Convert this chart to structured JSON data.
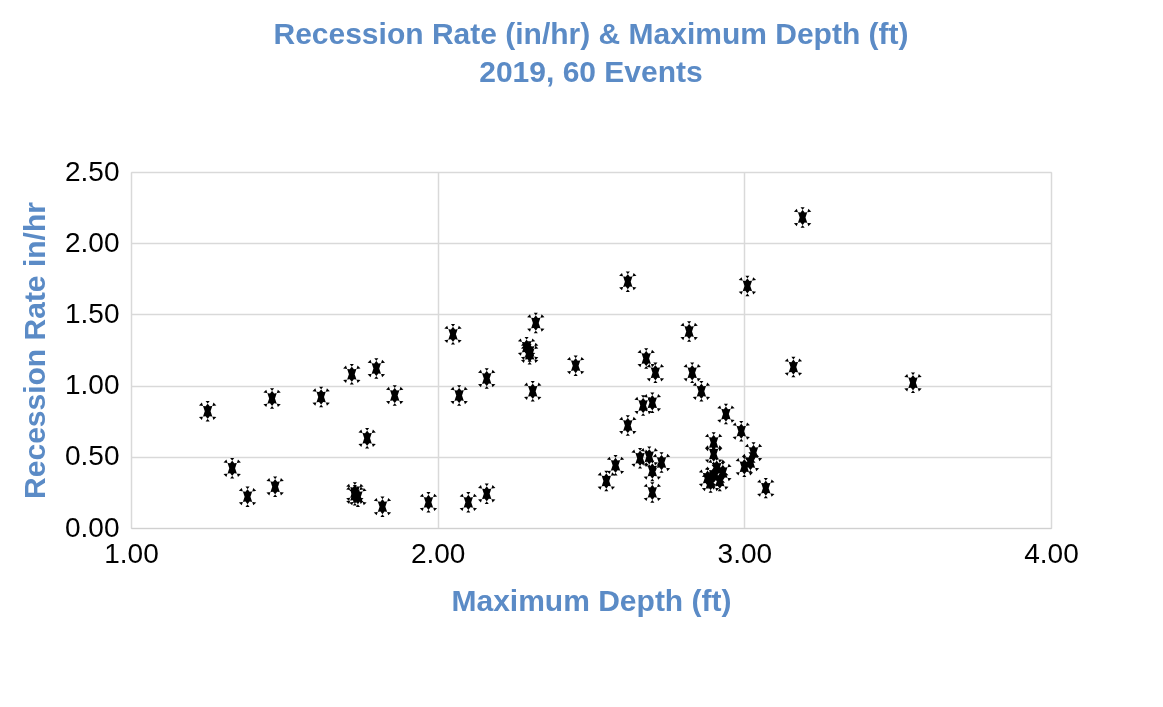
{
  "chart_data": {
    "type": "scatter",
    "title": "Recession Rate (in/hr) & Maximum Depth (ft)",
    "subtitle": "2019, 60 Events",
    "xlabel": "Maximum Depth (ft)",
    "ylabel": "Recession Rate in/hr",
    "series": [
      {
        "color": "#000000",
        "x": [
          1.25,
          1.33,
          1.38,
          1.47,
          1.46,
          1.62,
          1.72,
          1.8,
          1.86,
          1.77,
          1.73,
          1.74,
          1.82,
          1.97,
          2.1,
          2.16,
          2.05,
          2.07,
          2.16,
          2.32,
          2.29,
          2.3,
          2.31,
          2.62,
          3.01,
          3.19,
          2.45,
          2.82,
          3.16,
          2.68,
          2.71,
          2.83,
          2.86,
          2.7,
          2.67,
          2.62,
          2.94,
          2.99,
          2.9,
          2.9,
          3.03,
          3.02,
          2.58,
          2.55,
          2.66,
          2.73,
          2.7,
          2.7,
          2.9,
          2.92,
          2.89,
          2.93,
          3.07,
          3.55,
          2.91,
          2.88,
          3.0,
          2.69,
          2.3,
          1.73
        ],
        "values": [
          0.82,
          0.42,
          0.22,
          0.29,
          0.91,
          0.92,
          1.08,
          1.12,
          0.93,
          0.63,
          0.25,
          0.22,
          0.15,
          0.18,
          0.18,
          0.24,
          1.36,
          0.93,
          1.05,
          1.44,
          1.27,
          1.22,
          0.96,
          1.73,
          1.7,
          2.18,
          1.14,
          1.38,
          1.13,
          1.19,
          1.09,
          1.09,
          0.96,
          0.88,
          0.86,
          0.72,
          0.8,
          0.68,
          0.6,
          0.52,
          0.53,
          0.46,
          0.44,
          0.33,
          0.49,
          0.46,
          0.4,
          0.25,
          0.37,
          0.33,
          0.32,
          0.39,
          0.28,
          1.02,
          0.42,
          0.35,
          0.43,
          0.5,
          1.24,
          0.23
        ]
      }
    ],
    "xlim": [
      1,
      4
    ],
    "xticks": [
      {
        "value": 1,
        "label": "1.00"
      },
      {
        "value": 2,
        "label": "2.00"
      },
      {
        "value": 3,
        "label": "3.00"
      },
      {
        "value": 4,
        "label": "4.00"
      }
    ],
    "ylim": [
      0,
      2.5
    ],
    "yticks": [
      {
        "value": 0,
        "label": "0.00"
      },
      {
        "value": 0.5,
        "label": "0.50"
      },
      {
        "value": 1,
        "label": "1.00"
      },
      {
        "value": 1.5,
        "label": "1.50"
      },
      {
        "value": 2,
        "label": "2.00"
      },
      {
        "value": 2.5,
        "label": "2.50"
      }
    ],
    "grid": true,
    "marker": "cross"
  }
}
